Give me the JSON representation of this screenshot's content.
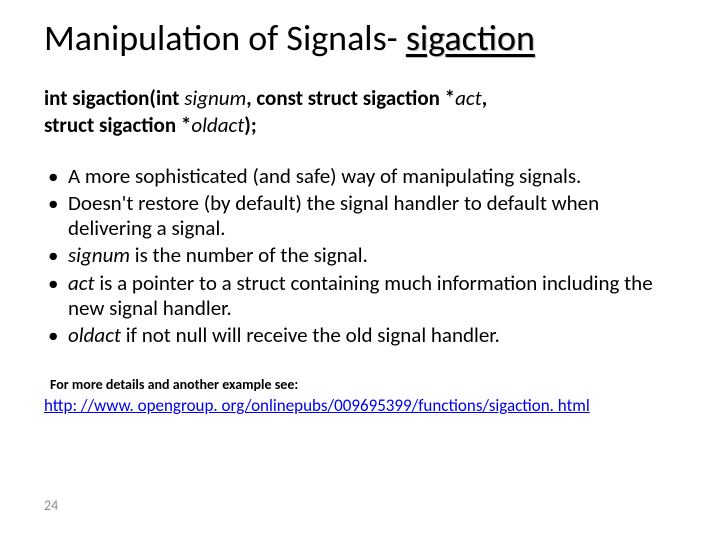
{
  "title": {
    "prefix": "Manipulation of Signals- ",
    "keyword": "sigaction"
  },
  "signature": {
    "l1_a": "int sigaction(int ",
    "l1_b": "signum",
    "l1_c": ", const struct sigaction *",
    "l1_d": "act",
    "l1_e": ",",
    "l2_a": "struct sigaction *",
    "l2_b": "oldact",
    "l2_c": ");"
  },
  "bullets": [
    "A more sophisticated (and safe) way of manipulating signals.",
    "Doesn't restore (by default) the signal handler to default when delivering a signal.",
    "signum is the number of the signal.",
    "act is a pointer to a struct containing much information including the new signal handler.",
    "oldact if not null will receive the old signal handler."
  ],
  "bullet3": {
    "kw": "signum",
    "rest": " is the number of the signal."
  },
  "bullet4": {
    "kw": "act",
    "rest": " is a pointer to a struct containing much information including the new signal handler."
  },
  "bullet5": {
    "kw": "oldact",
    "rest": " if not null will receive the old signal handler."
  },
  "footnote": {
    "label": "For more details and another example see:",
    "link": "http: //www. opengroup. org/onlinepubs/009695399/functions/sigaction. html"
  },
  "page_number": "24",
  "colors": {
    "text": "#000000",
    "link": "#0000ee",
    "pagenum": "#8c8c8c",
    "background": "#ffffff"
  },
  "fonts": {
    "family": "Calibri",
    "title_size_pt": 36,
    "body_size_pt": 21,
    "footnote_label_pt": 14,
    "link_pt": 17,
    "pagenum_pt": 14
  }
}
